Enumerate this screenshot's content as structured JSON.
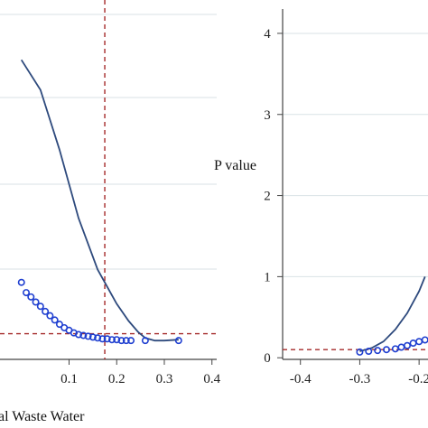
{
  "chart_data": [
    {
      "type": "line",
      "panel": "left",
      "title": "",
      "xlabel": "al Waste Water",
      "ylabel": "",
      "xlim": [
        -0.045,
        0.41
      ],
      "ylim": [
        -0.02,
        0.4
      ],
      "x_ticks": [
        "0.1",
        "0.2",
        "0.3",
        "0.4"
      ],
      "grid": true,
      "reference_lines": [
        {
          "orientation": "vertical",
          "value": 0.175,
          "style": "dashed",
          "color": "#a52a2a"
        },
        {
          "orientation": "horizontal",
          "value": 0.01,
          "style": "dashed",
          "color": "#a52a2a"
        }
      ],
      "series": [
        {
          "kind": "line",
          "color": "#2e4a7d",
          "x": [
            0.0,
            0.04,
            0.08,
            0.12,
            0.16,
            0.2,
            0.225,
            0.245,
            0.26,
            0.28,
            0.3,
            0.33
          ],
          "y": [
            0.33,
            0.295,
            0.225,
            0.145,
            0.085,
            0.045,
            0.025,
            0.012,
            0.005,
            0.002,
            0.002,
            0.003
          ]
        },
        {
          "kind": "scatter",
          "color": "#1f3fd0",
          "x": [
            0.0,
            0.01,
            0.02,
            0.03,
            0.04,
            0.05,
            0.06,
            0.07,
            0.08,
            0.09,
            0.1,
            0.11,
            0.12,
            0.13,
            0.14,
            0.15,
            0.16,
            0.17,
            0.18,
            0.19,
            0.2,
            0.21,
            0.22,
            0.23,
            0.26,
            0.33
          ],
          "y": [
            0.07,
            0.058,
            0.053,
            0.047,
            0.042,
            0.036,
            0.031,
            0.026,
            0.021,
            0.017,
            0.014,
            0.011,
            0.009,
            0.008,
            0.007,
            0.006,
            0.005,
            0.004,
            0.004,
            0.003,
            0.003,
            0.002,
            0.002,
            0.002,
            0.002,
            0.002
          ]
        }
      ]
    },
    {
      "type": "line",
      "panel": "right",
      "title": "",
      "xlabel": "",
      "ylabel": "P value",
      "xlim": [
        -0.43,
        -0.185
      ],
      "ylim": [
        -0.02,
        4.3
      ],
      "x_ticks": [
        "-0.4",
        "-0.3",
        "-0.2"
      ],
      "y_ticks": [
        "0",
        "1",
        "2",
        "3",
        "4"
      ],
      "grid": true,
      "reference_lines": [
        {
          "orientation": "horizontal",
          "value": 0.1,
          "style": "dashed",
          "color": "#a52a2a"
        }
      ],
      "series": [
        {
          "kind": "line",
          "color": "#2e4a7d",
          "x": [
            -0.3,
            -0.28,
            -0.26,
            -0.24,
            -0.22,
            -0.2,
            -0.19
          ],
          "y": [
            0.08,
            0.12,
            0.2,
            0.35,
            0.55,
            0.82,
            1.0
          ]
        },
        {
          "kind": "scatter",
          "color": "#1f3fd0",
          "x": [
            -0.3,
            -0.285,
            -0.27,
            -0.255,
            -0.24,
            -0.23,
            -0.22,
            -0.21,
            -0.2,
            -0.19
          ],
          "y": [
            0.07,
            0.08,
            0.09,
            0.1,
            0.11,
            0.13,
            0.15,
            0.18,
            0.2,
            0.22
          ]
        }
      ]
    }
  ]
}
